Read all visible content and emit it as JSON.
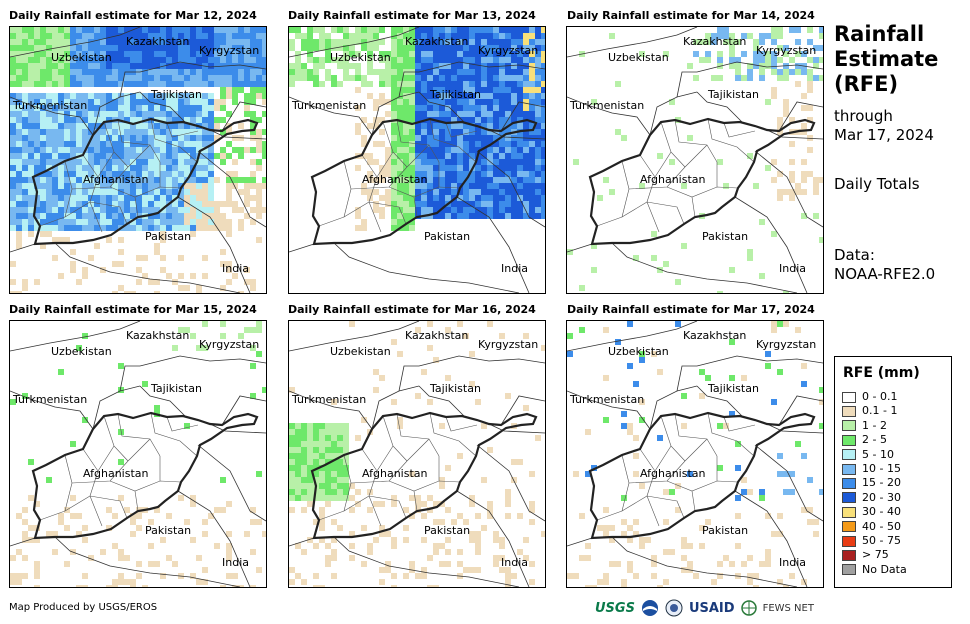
{
  "panels": [
    {
      "title": "Daily Rainfall estimate for Mar 12, 2024",
      "intensity": "heavy-north"
    },
    {
      "title": "Daily Rainfall estimate for Mar 13, 2024",
      "intensity": "heavy-east"
    },
    {
      "title": "Daily Rainfall estimate for Mar 14, 2024",
      "intensity": "light"
    },
    {
      "title": "Daily Rainfall estimate for Mar 15, 2024",
      "intensity": "very-light"
    },
    {
      "title": "Daily Rainfall estimate for Mar 16, 2024",
      "intensity": "light-west"
    },
    {
      "title": "Daily Rainfall estimate for Mar 17, 2024",
      "intensity": "scattered"
    }
  ],
  "countries": {
    "kazakhstan": "Kazakhstan",
    "kyrgyzstan": "Kyrgyzstan",
    "uzbekistan": "Uzbekistan",
    "turkmenistan": "Turkmenistan",
    "tajikistan": "Tajikistan",
    "afghanistan": "Afghanistan",
    "pakistan": "Pakistan",
    "india": "India"
  },
  "side": {
    "title_line1": "Rainfall",
    "title_line2": "Estimate",
    "title_line3": "(RFE)",
    "through": "through",
    "date": "Mar 17, 2024",
    "totals": "Daily Totals",
    "data_label": "Data:",
    "data_source": "NOAA-RFE2.0"
  },
  "legend": {
    "title": "RFE (mm)",
    "items": [
      {
        "label": "0 - 0.1",
        "color": "#ffffff"
      },
      {
        "label": "0.1 - 1",
        "color": "#efdcbc"
      },
      {
        "label": "1 - 2",
        "color": "#b8f0a8"
      },
      {
        "label": "2 - 5",
        "color": "#6ee86a"
      },
      {
        "label": "5 - 10",
        "color": "#b6f0f4"
      },
      {
        "label": "10 - 15",
        "color": "#78b8f0"
      },
      {
        "label": "15 - 20",
        "color": "#3c8cea"
      },
      {
        "label": "20 - 30",
        "color": "#1c5ad8"
      },
      {
        "label": "30 - 40",
        "color": "#f8e07a"
      },
      {
        "label": "40 - 50",
        "color": "#f49a18"
      },
      {
        "label": "50 - 75",
        "color": "#e83c14"
      },
      {
        "label": "> 75",
        "color": "#a82020"
      },
      {
        "label": "No Data",
        "color": "#a0a0a0"
      }
    ]
  },
  "footer": {
    "credit": "Map Produced by USGS/EROS"
  },
  "logos": {
    "usgs": "USGS",
    "usaid": "USAID",
    "fews": "FEWS NET"
  }
}
